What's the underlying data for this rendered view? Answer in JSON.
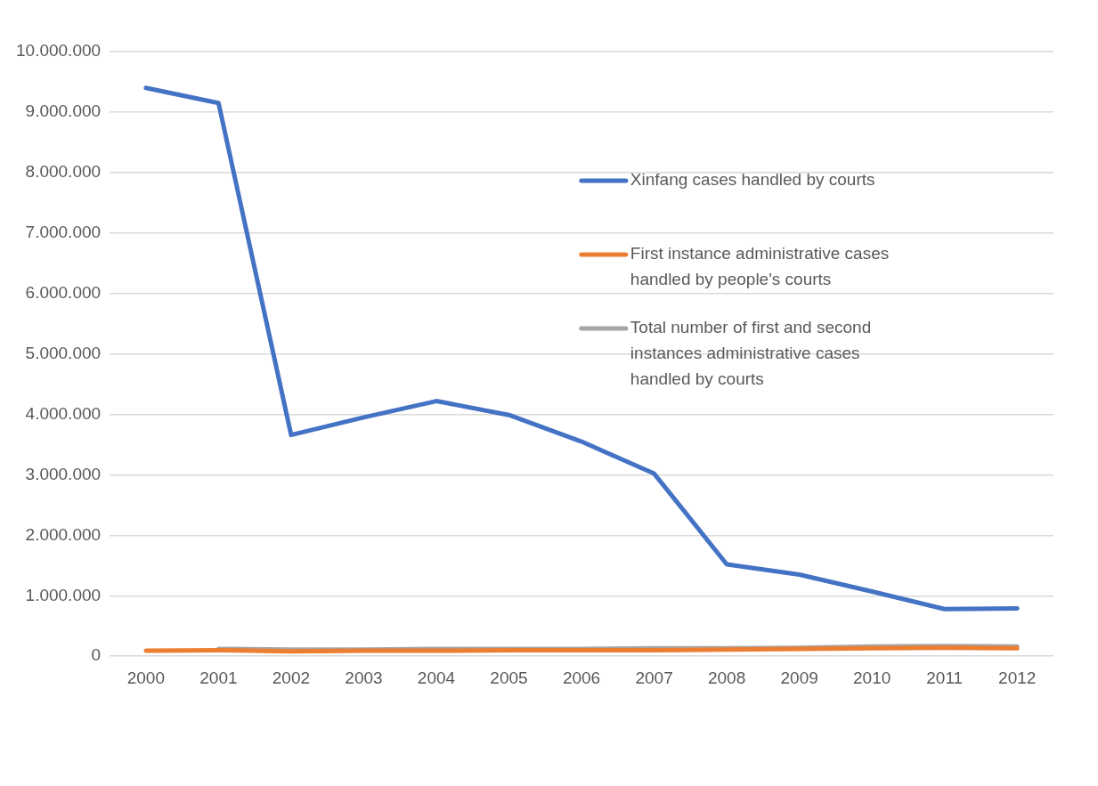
{
  "chart_data": {
    "type": "line",
    "categories": [
      "2000",
      "2001",
      "2002",
      "2003",
      "2004",
      "2005",
      "2006",
      "2007",
      "2008",
      "2009",
      "2010",
      "2011",
      "2012"
    ],
    "series": [
      {
        "name": "Xinfang cases handled by courts",
        "color": "#4472c4",
        "values": [
          9400000,
          9150000,
          3660000,
          3950000,
          4220000,
          3990000,
          3550000,
          3020000,
          1520000,
          1350000,
          1070000,
          780000,
          790000
        ]
      },
      {
        "name": "First instance administrative cases handled by people's courts",
        "color": "#ed7d31",
        "values": [
          90000,
          100000,
          80000,
          90000,
          90000,
          100000,
          100000,
          100000,
          110000,
          120000,
          130000,
          140000,
          130000
        ]
      },
      {
        "name": "Total number of first and second instances administrative cases handled by courts",
        "color": "#a5a5a5",
        "values": [
          null,
          120000,
          110000,
          110000,
          120000,
          120000,
          120000,
          130000,
          130000,
          140000,
          160000,
          170000,
          160000
        ]
      }
    ],
    "ylim": [
      0,
      10000000
    ],
    "yticks": [
      {
        "value": 0,
        "label": "0"
      },
      {
        "value": 1000000,
        "label": "1.000.000"
      },
      {
        "value": 2000000,
        "label": "2.000.000"
      },
      {
        "value": 3000000,
        "label": "3.000.000"
      },
      {
        "value": 4000000,
        "label": "4.000.000"
      },
      {
        "value": 5000000,
        "label": "5.000.000"
      },
      {
        "value": 6000000,
        "label": "6.000.000"
      },
      {
        "value": 7000000,
        "label": "7.000.000"
      },
      {
        "value": 8000000,
        "label": "8.000.000"
      },
      {
        "value": 9000000,
        "label": "9.000.000"
      },
      {
        "value": 10000000,
        "label": "10.000.000"
      }
    ],
    "grid": "y",
    "legend": "right",
    "marker": "none",
    "line_style": "solid"
  }
}
